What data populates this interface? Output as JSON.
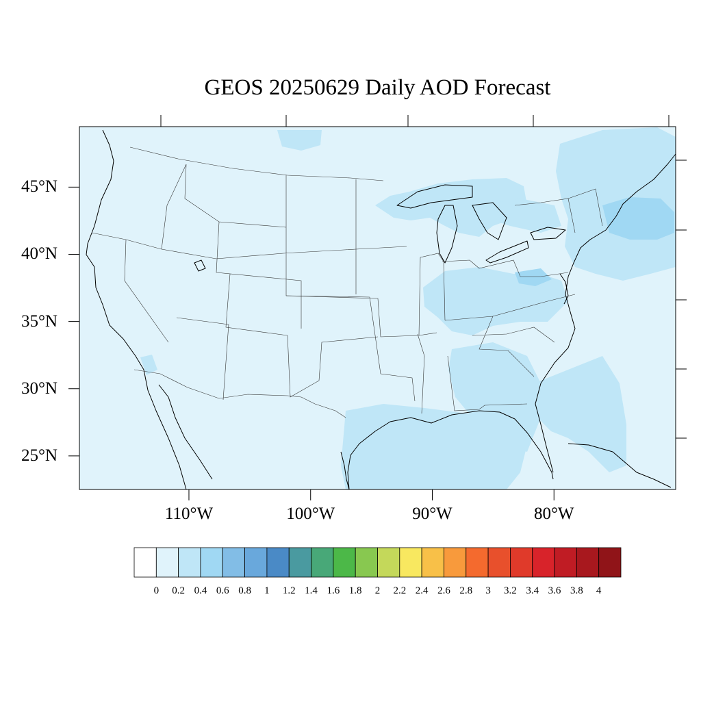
{
  "title": "GEOS 20250629 Daily AOD Forecast",
  "map": {
    "region": "Contiguous United States",
    "projection": "latitude-longitude",
    "lat_range": [
      22.5,
      49.5
    ],
    "lon_range": [
      -119,
      -70
    ],
    "lat_ticks": [
      {
        "value": 45,
        "label": "45°N"
      },
      {
        "value": 40,
        "label": "40°N"
      },
      {
        "value": 35,
        "label": "35°N"
      },
      {
        "value": 30,
        "label": "30°N"
      },
      {
        "value": 25,
        "label": "25°N"
      }
    ],
    "lon_ticks": [
      {
        "value": -110,
        "label": "110°W"
      },
      {
        "value": -100,
        "label": "100°W"
      },
      {
        "value": -90,
        "label": "90°W"
      },
      {
        "value": -80,
        "label": "80°W"
      }
    ],
    "background_aod_bin": "0.0-0.2",
    "elevated_aod_regions": [
      {
        "area": "Great Lakes / Upper Midwest",
        "aod_bin": "0.2-0.4"
      },
      {
        "area": "Ohio Valley",
        "aod_bin": "0.2-0.4"
      },
      {
        "area": "Southeast US",
        "aod_bin": "0.2-0.4"
      },
      {
        "area": "Gulf of Mexico",
        "aod_bin": "0.2-0.4"
      },
      {
        "area": "Western Atlantic / Bahamas",
        "aod_bin": "0.2-0.4"
      },
      {
        "area": "Northeast / Gulf of Maine",
        "aod_bin": "0.4-0.6"
      },
      {
        "area": "Southern Ontario",
        "aod_bin": "0.2-0.4"
      }
    ]
  },
  "colorbar": {
    "labels": [
      "0",
      "0.2",
      "0.4",
      "0.6",
      "0.8",
      "1",
      "1.2",
      "1.4",
      "1.6",
      "1.8",
      "2",
      "2.2",
      "2.4",
      "2.6",
      "2.8",
      "3",
      "3.2",
      "3.4",
      "3.6",
      "3.8",
      "4"
    ],
    "colors": [
      "#ffffff",
      "#e0f3fb",
      "#bfe6f7",
      "#a0d8f3",
      "#82bde6",
      "#69a8dc",
      "#4a8ac6",
      "#4a9aa0",
      "#48a878",
      "#4cb848",
      "#88c850",
      "#c4d85a",
      "#f8e860",
      "#f8c048",
      "#f89a3c",
      "#f46a2e",
      "#e8502c",
      "#e03a2a",
      "#d8232a",
      "#c01c24",
      "#a8181e",
      "#901418"
    ]
  }
}
